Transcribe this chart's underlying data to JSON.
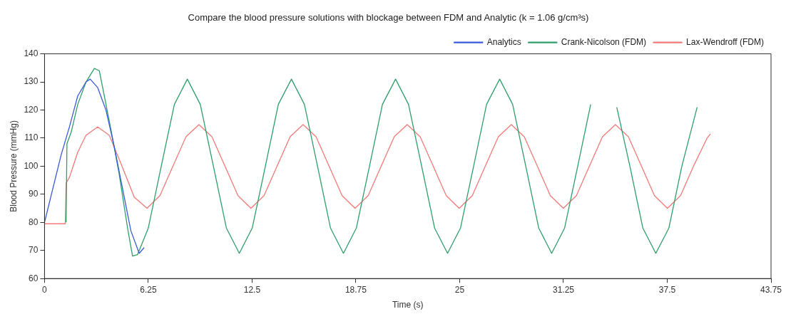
{
  "chart_data": {
    "type": "line",
    "title": "Compare the blood pressure solutions with blockage between FDM and Analytic (k = 1.06 g/cm³s)",
    "xlabel": "Time (s)",
    "ylabel": "Blood Pressure (mmHg)",
    "xlim": [
      0,
      43.75
    ],
    "ylim": [
      60,
      140
    ],
    "xticks": [
      0,
      6.25,
      12.5,
      18.75,
      25,
      31.25,
      37.5,
      43.75
    ],
    "yticks": [
      60,
      70,
      80,
      90,
      100,
      110,
      120,
      130,
      140
    ],
    "legend": "top right",
    "grid": false,
    "series": [
      {
        "name": "Analytics",
        "color": "#3a5bd9",
        "x": [
          0,
          0.5,
          1.0,
          1.5,
          2.0,
          2.5,
          2.75,
          3.2,
          3.7,
          4.2,
          4.7,
          5.2,
          5.7,
          6.0
        ],
        "values": [
          80,
          92,
          104,
          114,
          125,
          130,
          131,
          128,
          120,
          107,
          92,
          77,
          69,
          71
        ]
      },
      {
        "name": "Crank-Nicolson (FDM)",
        "color": "#2e9e6a",
        "x": [
          1.3,
          1.35,
          1.6,
          2.0,
          2.5,
          3.0,
          3.3,
          3.5,
          4.0,
          4.5,
          5.0,
          5.3,
          5.6,
          6.25,
          7.03,
          7.82,
          8.6,
          9.38,
          10.17,
          10.95,
          11.73,
          12.51,
          13.3,
          14.08,
          14.87,
          15.65,
          16.44,
          17.22,
          18.0,
          18.78,
          19.57,
          20.35,
          21.14,
          21.92,
          22.71,
          23.49,
          24.27,
          25.05,
          25.84,
          26.62,
          27.41,
          28.19,
          28.98,
          29.76,
          30.54,
          31.32,
          32.11,
          32.89,
          33.68,
          34.46,
          35.25,
          36.03,
          36.81,
          37.6,
          38.38,
          39.3
        ],
        "values": [
          80,
          108,
          112,
          122,
          130,
          134.8,
          134,
          128,
          113,
          97,
          78,
          68,
          68.5,
          78,
          100,
          122,
          131,
          122,
          100,
          78,
          69,
          78,
          100,
          122,
          131,
          122,
          100,
          78,
          69,
          78,
          100,
          122,
          131,
          122,
          100,
          78,
          69,
          78,
          100,
          122,
          131,
          122,
          100,
          78,
          69,
          78,
          100,
          122,
          null,
          121,
          100,
          78,
          69,
          78,
          100,
          121
        ]
      },
      {
        "name": "Lax-Wendroff (FDM)",
        "color": "#f07a78",
        "x": [
          0,
          1.25,
          1.3,
          1.5,
          2.0,
          2.5,
          3.2,
          3.9,
          4.6,
          5.4,
          6.17,
          6.95,
          7.73,
          8.52,
          9.3,
          10.08,
          10.87,
          11.65,
          12.43,
          13.22,
          14.0,
          14.79,
          15.57,
          16.35,
          17.14,
          17.92,
          18.7,
          19.49,
          20.27,
          21.06,
          21.84,
          22.62,
          23.41,
          24.19,
          24.97,
          25.76,
          26.54,
          27.33,
          28.11,
          28.89,
          29.68,
          30.46,
          31.24,
          32.03,
          32.81,
          33.6,
          34.38,
          35.16,
          35.95,
          36.73,
          37.51,
          38.3,
          39.08,
          39.9,
          40.1
        ],
        "values": [
          79.5,
          79.5,
          94,
          96,
          105,
          111,
          114,
          111,
          101,
          89,
          85,
          89.5,
          100,
          110.5,
          114.8,
          110.5,
          100,
          89.5,
          85,
          89.5,
          100,
          110.5,
          114.8,
          110.5,
          100,
          89.5,
          85,
          89.5,
          100,
          110.5,
          114.8,
          110.5,
          100,
          89.5,
          85,
          89.5,
          100,
          110.5,
          114.8,
          110.5,
          100,
          89.5,
          85,
          89.5,
          100,
          110.5,
          114.8,
          110.5,
          100,
          89.5,
          85,
          89.5,
          100,
          110,
          111.5
        ]
      }
    ]
  }
}
